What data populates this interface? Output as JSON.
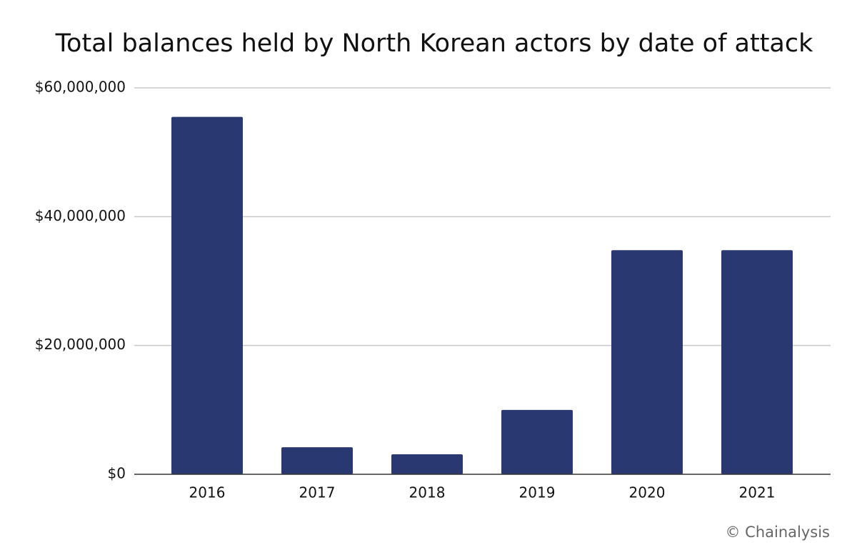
{
  "chart_data": {
    "type": "bar",
    "title": "Total balances held by North Korean actors by date of attack",
    "categories": [
      "2016",
      "2017",
      "2018",
      "2019",
      "2020",
      "2021"
    ],
    "values": [
      55500000,
      4200000,
      3100000,
      10000000,
      34800000,
      34800000
    ],
    "color": "#293871",
    "ylim": [
      0,
      60000000
    ],
    "yticks": [
      {
        "value": 0,
        "label": "$0"
      },
      {
        "value": 20000000,
        "label": "$20,000,000"
      },
      {
        "value": 40000000,
        "label": "$40,000,000"
      },
      {
        "value": 60000000,
        "label": "$60,000,000"
      }
    ],
    "grid": true,
    "source": "© Chainalysis"
  }
}
